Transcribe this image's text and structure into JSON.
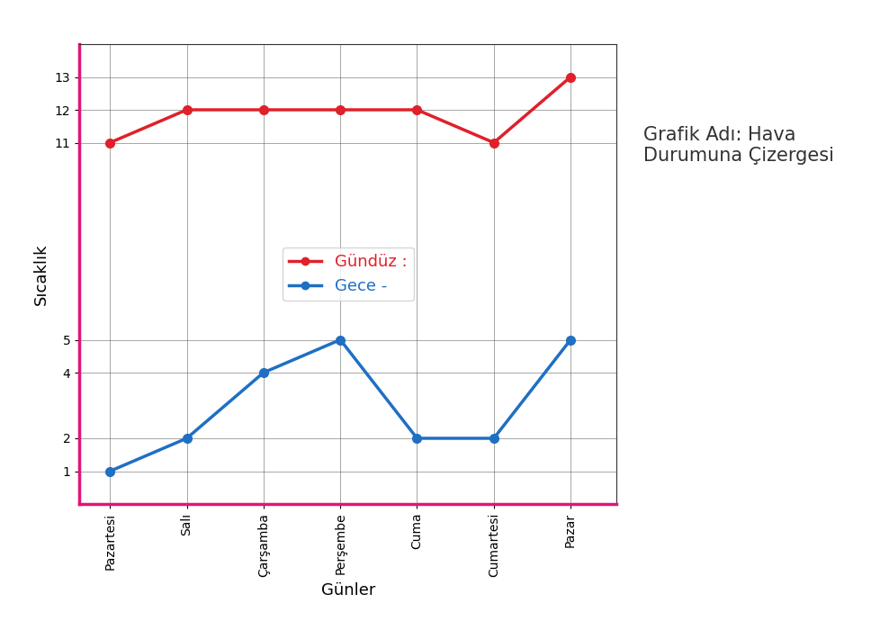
{
  "chart_data": {
    "type": "line",
    "title": "Grafik Adı: Hava Durumuna Çizergesi",
    "x_label": "Günler",
    "y_label": "Sıcaklık",
    "categories": [
      "Pazartesi",
      "Salı",
      "Çarşamba",
      "Perşembe",
      "Cuma",
      "Cumartesi",
      "Pazar"
    ],
    "series": [
      {
        "name": "Gündüz :",
        "color": "#e0202a",
        "marker": "o",
        "line_style": "solid",
        "values": [
          11,
          12,
          12,
          12,
          12,
          11,
          13
        ]
      },
      {
        "name": "Gece -",
        "color": "#1f6fc4",
        "marker": "o",
        "line_style": "solid",
        "values": [
          1,
          2,
          4,
          5,
          2,
          2,
          5
        ]
      }
    ],
    "ylim": [
      0,
      14
    ],
    "yticks": [
      1,
      2,
      4,
      5,
      11,
      12,
      13
    ],
    "grid": true,
    "legend": "center"
  }
}
